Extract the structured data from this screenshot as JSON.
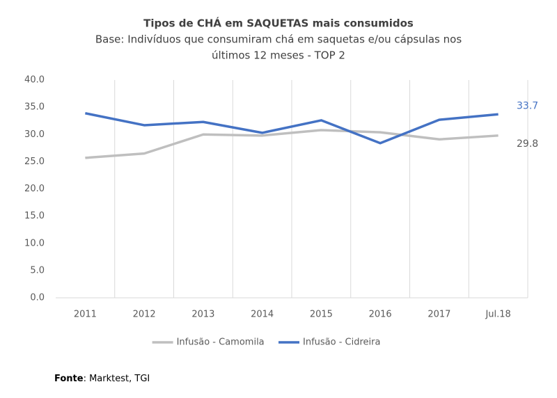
{
  "chart_data": {
    "type": "line",
    "title": "Tipos de CHÁ em SAQUETAS mais consumidos",
    "subtitle": [
      "Base: Indivíduos que consumiram chá em saquetas e/ou cápsulas nos",
      "últimos 12 meses - TOP 2"
    ],
    "categories": [
      "2011",
      "2012",
      "2013",
      "2014",
      "2015",
      "2016",
      "2017",
      "Jul.18"
    ],
    "series": [
      {
        "name": "Infusão - Camomila",
        "color": "#bfbfbf",
        "label_color": "#595959",
        "values": [
          25.7,
          26.5,
          30.0,
          29.8,
          30.8,
          30.4,
          29.1,
          29.8
        ]
      },
      {
        "name": "Infusão - Cidreira",
        "color": "#4472c4",
        "label_color": "#4472c4",
        "values": [
          33.9,
          31.7,
          32.3,
          30.3,
          32.6,
          28.4,
          32.7,
          33.7
        ]
      }
    ],
    "label_last": true,
    "ylim": [
      0,
      40
    ],
    "yticks": [
      {
        "value": 0,
        "label": "0.0"
      },
      {
        "value": 5,
        "label": "5.0"
      },
      {
        "value": 10,
        "label": "10.0"
      },
      {
        "value": 15,
        "label": "15.0"
      },
      {
        "value": 20,
        "label": "20.0"
      },
      {
        "value": 25,
        "label": "25.0"
      },
      {
        "value": 30,
        "label": "30.0"
      },
      {
        "value": 35,
        "label": "35.0"
      },
      {
        "value": 40,
        "label": "40.0"
      }
    ],
    "grid": true,
    "legend": "bottom",
    "source_label": "Fonte",
    "source": ": Marktest, TGI"
  }
}
